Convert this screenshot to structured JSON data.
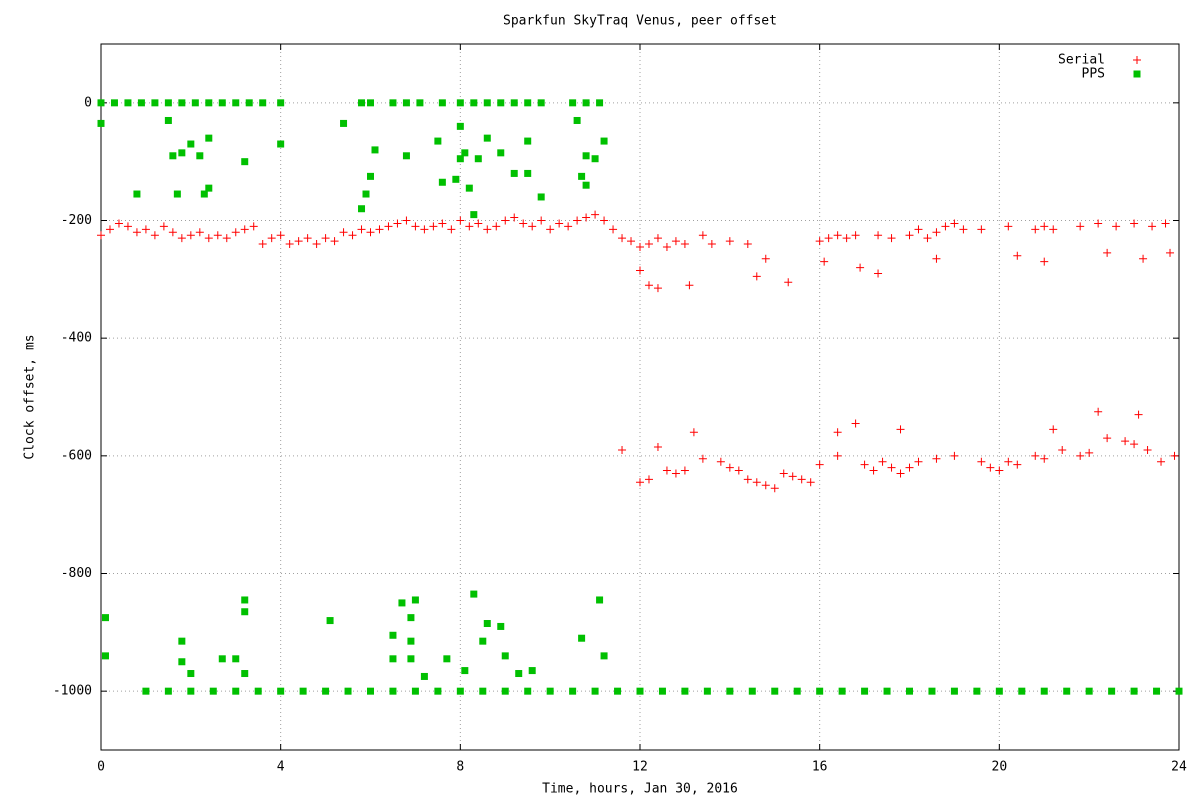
{
  "chart_data": {
    "type": "scatter",
    "title": "Sparkfun SkyTraq Venus, peer offset",
    "x_label": "Time, hours, Jan 30, 2016",
    "y_label": "Clock offset, ms",
    "xlim": [
      0,
      24
    ],
    "xticks": [
      0,
      4,
      8,
      12,
      16,
      20,
      24
    ],
    "ylim": [
      -1100,
      100
    ],
    "yticks": [
      -1000,
      -800,
      -600,
      -400,
      -200,
      0
    ],
    "grid": true,
    "legend": "top-right",
    "series": [
      {
        "name": "Serial",
        "color": "#ff0000",
        "marker": "plus",
        "x": [
          0,
          0.2,
          0.4,
          0.6,
          0.8,
          1.0,
          1.2,
          1.4,
          1.6,
          1.8,
          2.0,
          2.2,
          2.4,
          2.6,
          2.8,
          3.0,
          3.2,
          3.4,
          3.6,
          3.8,
          4.0,
          4.2,
          4.4,
          4.6,
          4.8,
          5.0,
          5.2,
          5.4,
          5.6,
          5.8,
          6.0,
          6.2,
          6.4,
          6.6,
          6.8,
          7.0,
          7.2,
          7.4,
          7.6,
          7.8,
          8.0,
          8.2,
          8.4,
          8.6,
          8.8,
          9.0,
          9.2,
          9.4,
          9.6,
          9.8,
          10.0,
          10.2,
          10.4,
          10.6,
          10.8,
          11.0,
          11.2,
          11.4,
          11.6,
          11.8,
          12.0,
          12.2,
          12.4,
          12.6,
          12.8,
          13.0,
          13.4,
          13.6,
          14.0,
          14.4,
          14.6,
          14.8,
          15.3,
          12.0,
          12.2,
          12.4,
          13.1,
          16.0,
          16.2,
          16.4,
          16.6,
          16.8,
          17.3,
          17.6,
          18.0,
          18.2,
          18.4,
          18.6,
          18.8,
          19.0,
          19.2,
          19.6,
          20.2,
          20.8,
          21.0,
          21.2,
          21.8,
          22.2,
          22.6,
          23.0,
          23.4,
          23.7,
          20.4,
          21.0,
          22.4,
          23.2,
          23.8,
          16.1,
          16.9,
          17.3,
          18.6,
          11.6,
          12.0,
          12.2,
          12.4,
          12.6,
          12.8,
          13.0,
          13.2,
          13.4,
          13.8,
          14.0,
          14.2,
          14.4,
          14.6,
          14.8,
          15.0,
          15.2,
          15.4,
          15.6,
          15.8,
          16.0,
          16.4,
          16.8,
          17.0,
          17.2,
          17.4,
          17.6,
          17.8,
          18.0,
          18.2,
          18.6,
          19.0,
          19.6,
          19.8,
          20.0,
          20.2,
          20.4,
          20.8,
          21.0,
          21.4,
          21.8,
          22.0,
          22.4,
          22.8,
          23.0,
          23.3,
          23.6,
          23.9,
          22.2,
          23.1,
          21.2,
          17.8,
          16.4
        ],
        "values": [
          -225,
          -215,
          -205,
          -210,
          -220,
          -215,
          -225,
          -210,
          -220,
          -230,
          -225,
          -220,
          -230,
          -225,
          -230,
          -220,
          -215,
          -210,
          -240,
          -230,
          -225,
          -240,
          -235,
          -230,
          -240,
          -230,
          -235,
          -220,
          -225,
          -215,
          -220,
          -215,
          -210,
          -205,
          -200,
          -210,
          -215,
          -210,
          -205,
          -215,
          -200,
          -210,
          -205,
          -215,
          -210,
          -200,
          -195,
          -205,
          -210,
          -200,
          -215,
          -205,
          -210,
          -200,
          -195,
          -190,
          -200,
          -215,
          -230,
          -235,
          -245,
          -240,
          -230,
          -245,
          -235,
          -240,
          -225,
          -240,
          -235,
          -240,
          -295,
          -265,
          -305,
          -285,
          -310,
          -315,
          -310,
          -235,
          -230,
          -225,
          -230,
          -225,
          -225,
          -230,
          -225,
          -215,
          -230,
          -220,
          -210,
          -205,
          -215,
          -215,
          -210,
          -215,
          -210,
          -215,
          -210,
          -205,
          -210,
          -205,
          -210,
          -205,
          -260,
          -270,
          -255,
          -265,
          -255,
          -270,
          -280,
          -290,
          -265,
          -590,
          -645,
          -640,
          -585,
          -625,
          -630,
          -625,
          -560,
          -605,
          -610,
          -620,
          -625,
          -640,
          -645,
          -650,
          -655,
          -630,
          -635,
          -640,
          -645,
          -615,
          -600,
          -545,
          -615,
          -625,
          -610,
          -620,
          -630,
          -620,
          -610,
          -605,
          -600,
          -610,
          -620,
          -625,
          -610,
          -615,
          -600,
          -605,
          -590,
          -600,
          -595,
          -570,
          -575,
          -580,
          -590,
          -610,
          -600,
          -525,
          -530,
          -555,
          -555,
          -560
        ]
      },
      {
        "name": "PPS",
        "color": "#00c000",
        "marker": "square",
        "x": [
          0,
          0.3,
          0.6,
          0.9,
          1.2,
          1.5,
          1.8,
          2.1,
          2.4,
          2.7,
          3.0,
          3.3,
          3.6,
          4.0,
          5.8,
          6.0,
          6.5,
          6.8,
          7.1,
          7.6,
          8.0,
          8.3,
          8.6,
          8.9,
          9.2,
          9.5,
          9.8,
          10.5,
          10.8,
          11.1,
          0,
          0.1,
          0.1,
          0.8,
          1.5,
          1.6,
          1.7,
          1.8,
          1.8,
          1.8,
          2.0,
          2.0,
          2.2,
          2.3,
          2.4,
          2.4,
          2.7,
          3.0,
          3.2,
          3.2,
          3.2,
          3.2,
          4.0,
          5.1,
          5.4,
          5.8,
          5.9,
          6.0,
          6.1,
          6.5,
          6.5,
          6.7,
          6.8,
          6.9,
          6.9,
          6.9,
          7.0,
          7.2,
          7.5,
          7.6,
          7.7,
          7.9,
          8.0,
          8.0,
          8.1,
          8.1,
          8.2,
          8.3,
          8.3,
          8.4,
          8.5,
          8.6,
          8.6,
          8.9,
          8.9,
          9.0,
          9.2,
          9.3,
          9.5,
          9.5,
          9.6,
          9.8,
          10.6,
          10.7,
          10.7,
          10.8,
          10.8,
          11.0,
          11.1,
          11.2,
          11.2,
          1.0,
          1.5,
          2.0,
          2.5,
          3.0,
          3.5,
          4.0,
          4.5,
          5.0,
          5.5,
          6.0,
          6.5,
          7.0,
          7.5,
          8.0,
          8.5,
          9.0,
          9.5,
          10.0,
          10.5,
          11.0,
          11.5,
          12.0,
          12.5,
          13.0,
          13.5,
          14.0,
          14.5,
          15.0,
          15.5,
          16.0,
          16.5,
          17.0,
          17.5,
          18.0,
          18.5,
          19.0,
          19.5,
          20.0,
          20.5,
          21.0,
          21.5,
          22.0,
          22.5,
          23.0,
          23.5,
          24.0
        ],
        "values": [
          0,
          0,
          0,
          0,
          0,
          0,
          0,
          0,
          0,
          0,
          0,
          0,
          0,
          0,
          0,
          0,
          0,
          0,
          0,
          0,
          0,
          0,
          0,
          0,
          0,
          0,
          0,
          0,
          0,
          0,
          -35,
          -940,
          -875,
          -155,
          -30,
          -90,
          -155,
          -85,
          -915,
          -950,
          -70,
          -970,
          -90,
          -155,
          -145,
          -60,
          -945,
          -945,
          -100,
          -865,
          -845,
          -970,
          -70,
          -880,
          -35,
          -180,
          -155,
          -125,
          -80,
          -945,
          -905,
          -850,
          -90,
          -875,
          -915,
          -945,
          -845,
          -975,
          -65,
          -135,
          -945,
          -130,
          -40,
          -95,
          -85,
          -965,
          -145,
          -190,
          -835,
          -95,
          -915,
          -60,
          -885,
          -85,
          -890,
          -940,
          -120,
          -970,
          -65,
          -120,
          -965,
          -160,
          -30,
          -125,
          -910,
          -90,
          -140,
          -95,
          -845,
          -65,
          -940,
          -1000,
          -1000,
          -1000,
          -1000,
          -1000,
          -1000,
          -1000,
          -1000,
          -1000,
          -1000,
          -1000,
          -1000,
          -1000,
          -1000,
          -1000,
          -1000,
          -1000,
          -1000,
          -1000,
          -1000,
          -1000,
          -1000,
          -1000,
          -1000,
          -1000,
          -1000,
          -1000,
          -1000,
          -1000,
          -1000,
          -1000,
          -1000,
          -1000,
          -1000,
          -1000,
          -1000,
          -1000,
          -1000,
          -1000,
          -1000,
          -1000,
          -1000,
          -1000,
          -1000,
          -1000,
          -1000,
          -1000
        ]
      }
    ]
  }
}
